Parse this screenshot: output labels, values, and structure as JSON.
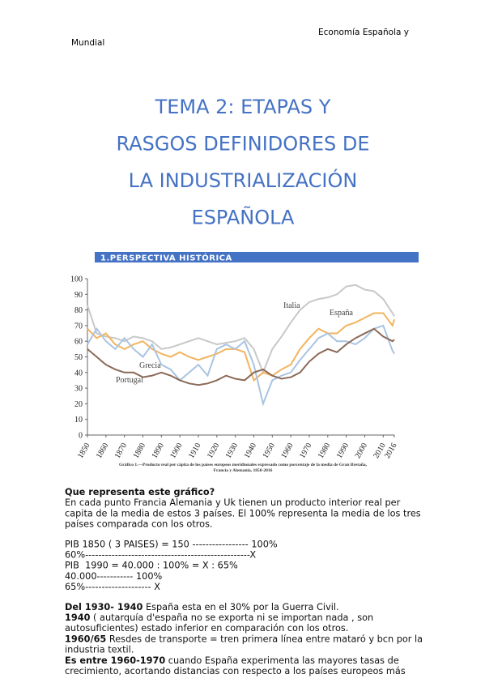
{
  "header": {
    "right": "Economía Española y",
    "left": "Mundial"
  },
  "title": [
    "TEMA 2: ETAPAS Y",
    "RASGOS DEFINIDORES DE",
    "LA INDUSTRIALIZACIÓN",
    "ESPAÑOLA"
  ],
  "section": "1.PERSPECTIVA HISTÓRICA",
  "chart_data": {
    "type": "line",
    "caption": [
      "Gráfico 1.—Producto real per cápita de los países europeos meridionales expresado como porcentaje de la media de Gran Bretaña,",
      "Francia y Alemania, 1850-2016"
    ],
    "x": [
      1850,
      1855,
      1860,
      1865,
      1870,
      1875,
      1880,
      1885,
      1890,
      1895,
      1900,
      1905,
      1910,
      1915,
      1920,
      1925,
      1930,
      1935,
      1940,
      1945,
      1950,
      1955,
      1960,
      1965,
      1970,
      1975,
      1980,
      1985,
      1990,
      1995,
      2000,
      2005,
      2010,
      2015,
      2016
    ],
    "xlim": [
      1850,
      2016
    ],
    "xticks": [
      1850,
      1860,
      1870,
      1880,
      1890,
      1900,
      1910,
      1920,
      1930,
      1940,
      1950,
      1960,
      1970,
      1980,
      1990,
      2000,
      2010,
      2016
    ],
    "ylim": [
      0,
      100
    ],
    "yticks": [
      0,
      10,
      20,
      30,
      40,
      50,
      60,
      70,
      80,
      90,
      100
    ],
    "series": [
      {
        "name": "Italia",
        "color": "#c8c8c8",
        "values": [
          83,
          65,
          63,
          62,
          60,
          63,
          62,
          60,
          55,
          56,
          58,
          60,
          62,
          60,
          58,
          59,
          60,
          62,
          55,
          40,
          55,
          63,
          72,
          80,
          85,
          87,
          88,
          90,
          95,
          96,
          93,
          92,
          87,
          78,
          76
        ]
      },
      {
        "name": "España",
        "color": "#f2b45e",
        "values": [
          68,
          62,
          65,
          58,
          55,
          58,
          60,
          55,
          52,
          50,
          53,
          50,
          48,
          50,
          52,
          55,
          55,
          53,
          35,
          40,
          38,
          42,
          45,
          55,
          62,
          68,
          65,
          65,
          70,
          72,
          75,
          78,
          78,
          70,
          74
        ]
      },
      {
        "name": "Grecia",
        "color": "#a9c4e2",
        "values": [
          58,
          68,
          60,
          55,
          62,
          55,
          50,
          58,
          45,
          42,
          35,
          40,
          45,
          38,
          55,
          58,
          55,
          60,
          45,
          20,
          35,
          38,
          40,
          48,
          55,
          62,
          65,
          60,
          60,
          58,
          62,
          68,
          70,
          54,
          52
        ]
      },
      {
        "name": "Portugal",
        "color": "#8b6a58",
        "values": [
          55,
          50,
          45,
          42,
          40,
          40,
          37,
          38,
          40,
          38,
          35,
          33,
          32,
          33,
          35,
          38,
          36,
          35,
          40,
          42,
          38,
          36,
          37,
          40,
          47,
          52,
          55,
          53,
          58,
          62,
          65,
          68,
          63,
          60,
          61
        ]
      }
    ]
  },
  "body": [
    [
      {
        "bold": "Que representa este gráfico?"
      },
      {
        "text": "En cada punto Francia Alemania y Uk tienen un producto interior real per"
      },
      {
        "text": "capita de la media de estos 3 países. El 100% representa la media de los tres"
      },
      {
        "text": "países comparada con los otros."
      }
    ],
    [
      {
        "text": "PIB 1850 ( 3 PAISES) = 150 ----------------- 100%"
      },
      {
        "text": "60%--------------------------------------------------X"
      },
      {
        "text": "PIB  1990 = 40.000 : 100% = X : 65%"
      },
      {
        "text": "40.000----------- 100%"
      },
      {
        "text": "65%-------------------- X"
      }
    ],
    [
      {
        "bold": "Del 1930- 1940",
        "text": " España esta en el 30% por la Guerra Civil."
      },
      {
        "bold": "1940",
        "text": " ( autarquía d'españa no se exporta ni se importan nada , son"
      },
      {
        "text": "autosuficientes) estado inferior en comparación con los otros."
      },
      {
        "bold": "1960/65",
        "text": " Resdes de transporte = tren primera línea entre mataró y bcn por la"
      },
      {
        "text": "industria textil."
      },
      {
        "bold": "Es entre 1960-1970",
        "text": " cuando España experimenta las mayores tasas de"
      },
      {
        "text": "crecimiento, acortando distancias con respecto a los países europeos más"
      }
    ]
  ]
}
